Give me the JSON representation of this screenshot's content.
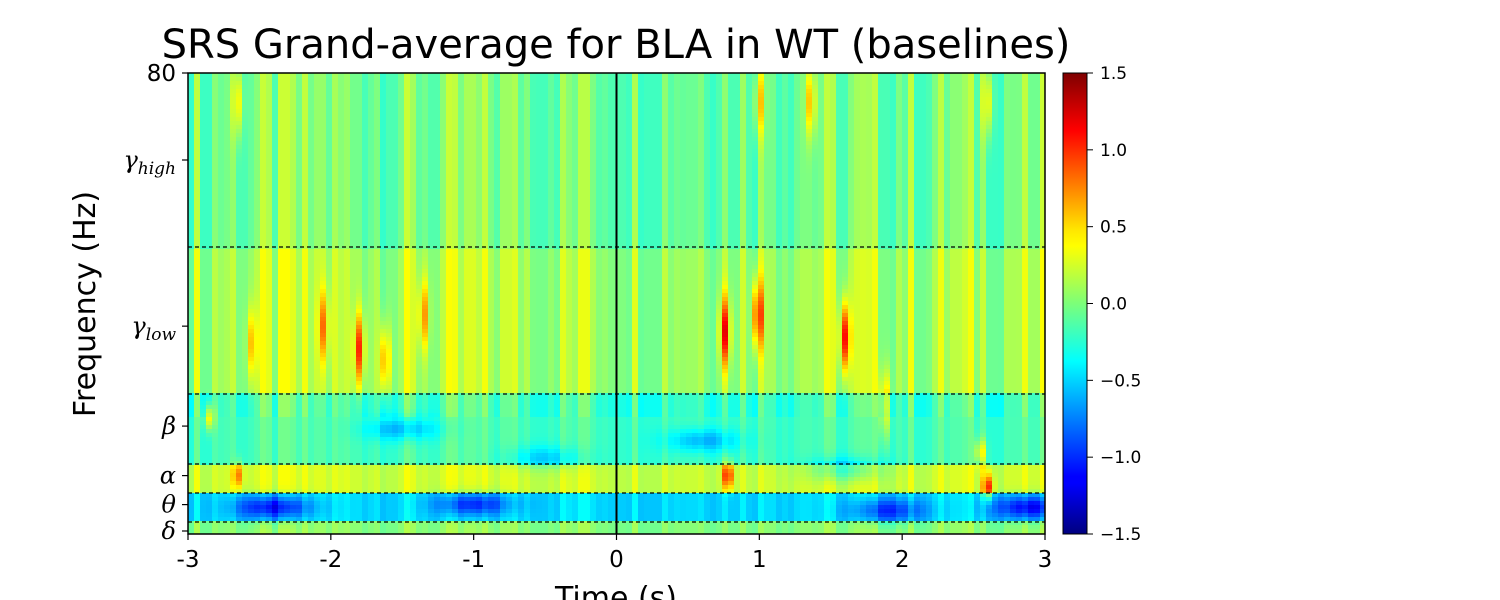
{
  "chart_data": {
    "type": "heatmap",
    "title": "SRS Grand-average for BLA in WT (baselines)",
    "xlabel": "Time (s)",
    "ylabel": "Frequency (Hz)",
    "xlim": [
      -3,
      3
    ],
    "xticks": [
      "-3",
      "-2",
      "-1",
      "0",
      "1",
      "2",
      "3"
    ],
    "ylim": [
      0,
      80
    ],
    "yticks": [
      {
        "label": "80",
        "value": 80,
        "kind": "number"
      },
      {
        "label": "γ",
        "sub": "high",
        "value": 65,
        "kind": "band"
      },
      {
        "label": "γ",
        "sub": "low",
        "value": 36,
        "kind": "band"
      },
      {
        "label": "β",
        "value": 18.5,
        "kind": "band"
      },
      {
        "label": "α",
        "value": 10,
        "kind": "band"
      },
      {
        "label": "θ",
        "value": 5,
        "kind": "band"
      },
      {
        "label": "δ",
        "value": 0.5,
        "kind": "band"
      }
    ],
    "band_boundaries_hz": [
      2,
      7,
      12,
      24,
      50
    ],
    "event_time": 0,
    "colormap": "jet",
    "clim": [
      -1.5,
      1.5
    ],
    "colorbar_ticks": [
      "1.5",
      "1.0",
      "0.5",
      "0.0",
      "−0.5",
      "−1.0",
      "−1.5"
    ],
    "colorbar_tick_values": [
      1.5,
      1.0,
      0.5,
      0.0,
      -0.5,
      -1.0,
      -1.5
    ],
    "background_value": 0.0,
    "band_mean_values": [
      {
        "band": "delta",
        "from_hz": 0,
        "to_hz": 2,
        "value": 0.05
      },
      {
        "band": "theta",
        "from_hz": 2,
        "to_hz": 7,
        "value": -0.45
      },
      {
        "band": "alpha",
        "from_hz": 7,
        "to_hz": 12,
        "value": 0.25
      },
      {
        "band": "beta",
        "from_hz": 12,
        "to_hz": 24,
        "value": -0.15
      },
      {
        "band": "gamma-low",
        "from_hz": 24,
        "to_hz": 50,
        "value": 0.15
      },
      {
        "band": "gamma-high",
        "from_hz": 50,
        "to_hz": 80,
        "value": 0.0
      }
    ],
    "hotspots": [
      {
        "t": 0.76,
        "f": 35,
        "value": 1.0
      },
      {
        "t": 0.99,
        "f": 38,
        "value": 1.0
      },
      {
        "t": 1.6,
        "f": 34,
        "value": 1.1
      },
      {
        "t": -1.8,
        "f": 32,
        "value": 0.9
      },
      {
        "t": -1.62,
        "f": 30,
        "value": 0.7
      },
      {
        "t": -2.05,
        "f": 36,
        "value": 0.6
      },
      {
        "t": -1.35,
        "f": 38,
        "value": 0.6
      },
      {
        "t": -2.55,
        "f": 33,
        "value": 0.5
      },
      {
        "t": -2.65,
        "f": 10,
        "value": 0.6
      },
      {
        "t": 0.78,
        "f": 10,
        "value": 0.9
      },
      {
        "t": 2.6,
        "f": 8,
        "value": 0.9
      },
      {
        "t": 2.55,
        "f": 14,
        "value": 0.6
      },
      {
        "t": 1.88,
        "f": 22,
        "value": 0.6
      },
      {
        "t": -2.85,
        "f": 20,
        "value": 0.6
      },
      {
        "t": 1.36,
        "f": 75,
        "value": 0.6
      },
      {
        "t": 1.0,
        "f": 75,
        "value": 0.5
      },
      {
        "t": -2.65,
        "f": 75,
        "value": 0.5
      },
      {
        "t": 2.6,
        "f": 75,
        "value": 0.5
      }
    ],
    "coldspots": [
      {
        "t": -2.4,
        "f": 4.5,
        "value": -0.7
      },
      {
        "t": -1.0,
        "f": 5,
        "value": -0.6
      },
      {
        "t": 2.9,
        "f": 4.5,
        "value": -0.7
      },
      {
        "t": 1.9,
        "f": 4,
        "value": -0.5
      },
      {
        "t": -1.5,
        "f": 18,
        "value": -0.4
      },
      {
        "t": 0.6,
        "f": 16,
        "value": -0.4
      },
      {
        "t": 1.6,
        "f": 11,
        "value": -0.4
      },
      {
        "t": -0.5,
        "f": 13,
        "value": -0.3
      }
    ]
  }
}
